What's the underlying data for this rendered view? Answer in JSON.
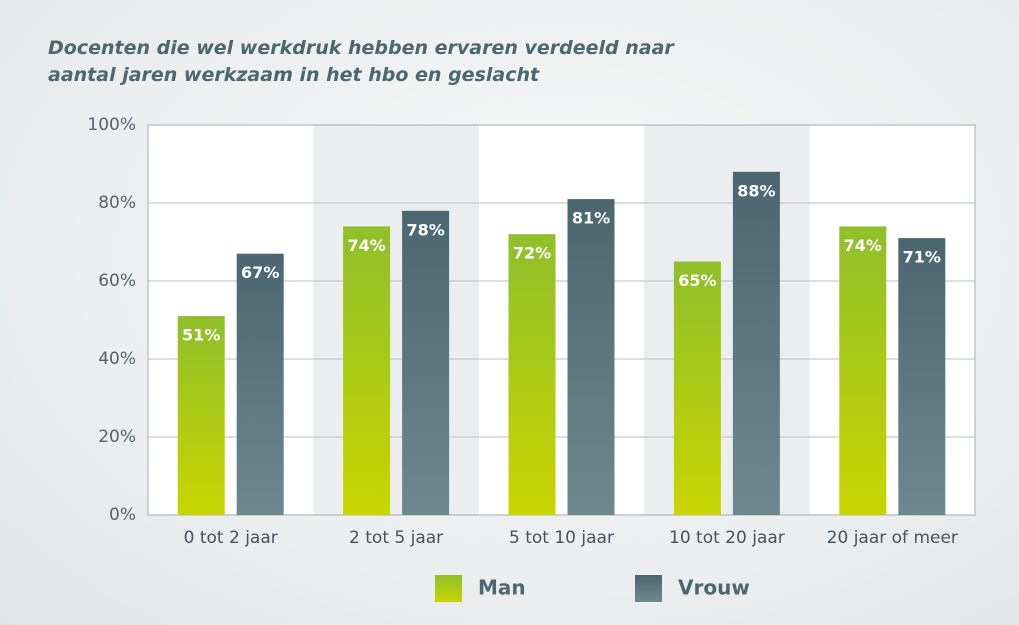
{
  "chart_data": {
    "type": "bar",
    "title": "Docenten die wel werkdruk hebben ervaren verdeeld naar\naantal jaren werkzaam in het hbo en geslacht",
    "categories": [
      "0 tot 2 jaar",
      "2 tot 5 jaar",
      "5 tot 10 jaar",
      "10 tot 20 jaar",
      "20 jaar of meer"
    ],
    "series": [
      {
        "name": "Man",
        "color": "#8fbf2b",
        "values": [
          51,
          74,
          72,
          65,
          74
        ],
        "value_labels": [
          "51%",
          "74%",
          "72%",
          "65%",
          "74%"
        ]
      },
      {
        "name": "Vrouw",
        "color": "#4b6670",
        "values": [
          67,
          78,
          81,
          88,
          71
        ],
        "value_labels": [
          "67%",
          "78%",
          "81%",
          "88%",
          "71%"
        ]
      }
    ],
    "ylim": [
      0,
      100
    ],
    "yticks": [
      {
        "value": 0,
        "label": "0%"
      },
      {
        "value": 20,
        "label": "20%"
      },
      {
        "value": 40,
        "label": "40%"
      },
      {
        "value": 60,
        "label": "60%"
      },
      {
        "value": 80,
        "label": "80%"
      },
      {
        "value": 100,
        "label": "100%"
      }
    ],
    "grid": true,
    "legend": "bottom"
  }
}
